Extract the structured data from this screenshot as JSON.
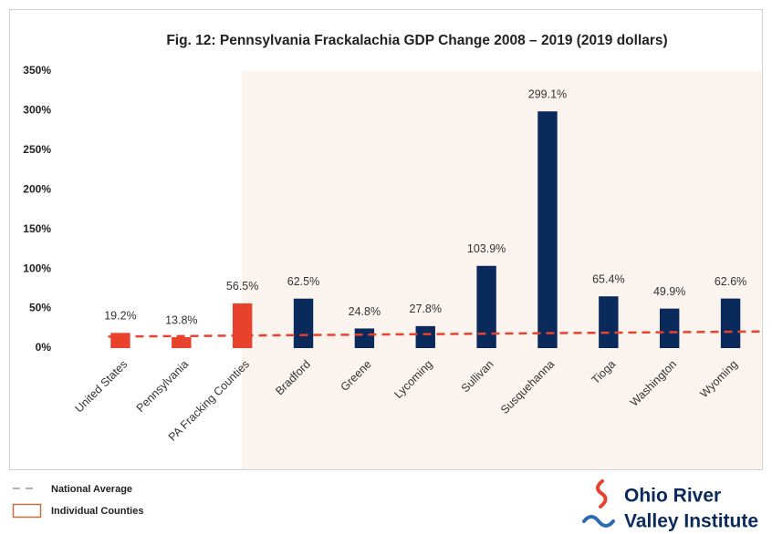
{
  "chart_data": {
    "type": "bar",
    "title": "Fig. 12: Pennsylvania Frackalachia GDP Change 2008 – 2019 (2019 dollars)",
    "categories": [
      "United States",
      "Pennsylvania",
      "PA Fracking Counties",
      "Bradford",
      "Greene",
      "Lycoming",
      "Sullivan",
      "Susquehanna",
      "Tioga",
      "Washington",
      "Wyoming"
    ],
    "values": [
      19.2,
      13.8,
      56.5,
      62.5,
      24.8,
      27.8,
      103.9,
      299.1,
      65.4,
      49.9,
      62.6
    ],
    "value_labels": [
      "19.2%",
      "13.8%",
      "56.5%",
      "62.5%",
      "24.8%",
      "27.8%",
      "103.9%",
      "299.1%",
      "65.4%",
      "49.9%",
      "62.6%"
    ],
    "colors": [
      "#e8412c",
      "#e8412c",
      "#e8412c",
      "#0a2a5c",
      "#0a2a5c",
      "#0a2a5c",
      "#0a2a5c",
      "#0a2a5c",
      "#0a2a5c",
      "#0a2a5c",
      "#0a2a5c"
    ],
    "ylim": [
      0,
      350
    ],
    "yticks": [
      {
        "value": 0,
        "label": "0%"
      },
      {
        "value": 50,
        "label": "50%"
      },
      {
        "value": 100,
        "label": "100%"
      },
      {
        "value": 150,
        "label": "150%"
      },
      {
        "value": 200,
        "label": "200%"
      },
      {
        "value": 250,
        "label": "250%"
      },
      {
        "value": 300,
        "label": "300%"
      },
      {
        "value": 350,
        "label": "350%"
      }
    ],
    "reference_line": {
      "name": "National Average",
      "color": "#e8412c",
      "start": 14.5,
      "end": 21
    },
    "shaded_region_name": "Individual Counties",
    "grid": false
  },
  "logo": {
    "line1": "Ohio River",
    "line2": "Valley Institute"
  }
}
